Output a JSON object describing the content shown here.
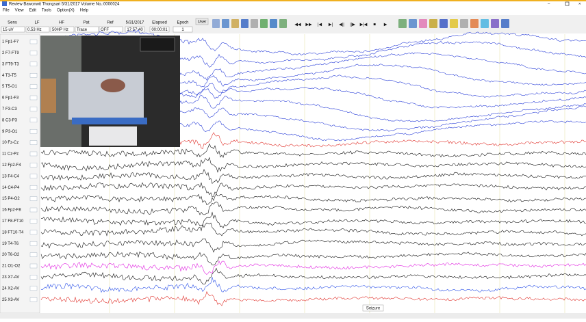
{
  "window": {
    "title": "Review  Bawonwit Thongsari    5/31/2017    Volume No.:0000024"
  },
  "menu": [
    "File",
    "View",
    "Edit",
    "Tools",
    "Option(X)",
    "Help"
  ],
  "toolbar": {
    "fields": [
      {
        "label": "Sens",
        "value": "15 uV"
      },
      {
        "label": "LF",
        "value": "0.53 Hz"
      },
      {
        "label": "HF",
        "value": "50HP Hz"
      },
      {
        "label": "Pat",
        "value": "Trace"
      },
      {
        "label": "Ref",
        "value": "OFF"
      }
    ],
    "date": "5/31/2017",
    "time": "17:57:40",
    "elapsed_label": "Elapsed",
    "elapsed": "00:00:01",
    "epoch_label": "Epoch",
    "epoch": "1",
    "user": "User"
  },
  "channels": [
    {
      "label": "1 Fp1-F7",
      "color": "#2a3fd8"
    },
    {
      "label": "2 F7-FT9",
      "color": "#2a3fd8"
    },
    {
      "label": "3 FT9-T3",
      "color": "#2a3fd8"
    },
    {
      "label": "4 T3-T5",
      "color": "#2a3fd8"
    },
    {
      "label": "5 T5-O1",
      "color": "#2a3fd8"
    },
    {
      "label": "6 Fp1-F3",
      "color": "#2a3fd8"
    },
    {
      "label": "7 F3-C3",
      "color": "#2a3fd8"
    },
    {
      "label": "8 C3-P3",
      "color": "#2a3fd8"
    },
    {
      "label": "9 P3-O1",
      "color": "#2a3fd8"
    },
    {
      "label": "10 Fz-Cz",
      "color": "#e0302a"
    },
    {
      "label": "11 Cz-Pz",
      "color": "#111111"
    },
    {
      "label": "12 Fp2-F4",
      "color": "#111111"
    },
    {
      "label": "13 F4-C4",
      "color": "#111111"
    },
    {
      "label": "14 C4-P4",
      "color": "#111111"
    },
    {
      "label": "15 P4-O2",
      "color": "#111111"
    },
    {
      "label": "16 Fp2-F8",
      "color": "#111111"
    },
    {
      "label": "17 F8-FT10",
      "color": "#111111"
    },
    {
      "label": "18 FT10-T4",
      "color": "#111111"
    },
    {
      "label": "19 T4-T6",
      "color": "#111111"
    },
    {
      "label": "20 T6-O2",
      "color": "#111111"
    },
    {
      "label": "21 O1-O2",
      "color": "#e020e0"
    },
    {
      "label": "23 X7-AV",
      "color": "#111111"
    },
    {
      "label": "24 X2-AV",
      "color": "#2a50e8"
    },
    {
      "label": "25 X3-AV",
      "color": "#e0302a"
    }
  ],
  "annotation": "Seizure"
}
